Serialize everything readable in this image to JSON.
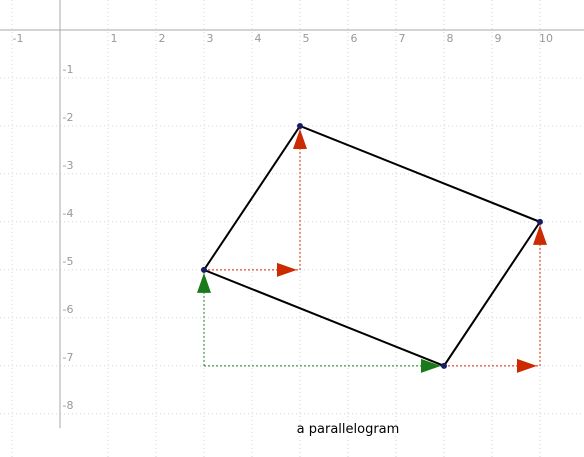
{
  "caption": "a parallelogram",
  "axes": {
    "xlim": [
      -1.25,
      10.917
    ],
    "ylim": [
      -8.9,
      0.625
    ],
    "xticks": [
      -1,
      1,
      2,
      3,
      4,
      5,
      6,
      7,
      8,
      9,
      10
    ],
    "yticks": [
      -1,
      -2,
      -3,
      -4,
      -5,
      -6,
      -7,
      -8
    ]
  },
  "polygon": {
    "color": "#000000",
    "x": [
      3,
      5,
      10,
      8
    ],
    "y": [
      -5,
      -2,
      -4,
      -7
    ]
  },
  "vectors": [
    {
      "color": "#1a7a1a",
      "x": [
        3,
        3
      ],
      "y": [
        -7,
        -5
      ]
    },
    {
      "color": "#1a7a1a",
      "x": [
        3,
        8
      ],
      "y": [
        -7,
        -7
      ]
    },
    {
      "color": "#cc2a00",
      "x": [
        3,
        5
      ],
      "y": [
        -5,
        -5
      ]
    },
    {
      "color": "#cc2a00",
      "x": [
        5,
        5
      ],
      "y": [
        -5,
        -2
      ]
    },
    {
      "color": "#cc2a00",
      "x": [
        8,
        10
      ],
      "y": [
        -7,
        -7
      ]
    },
    {
      "color": "#cc2a00",
      "x": [
        10,
        10
      ],
      "y": [
        -7,
        -4
      ]
    }
  ]
}
